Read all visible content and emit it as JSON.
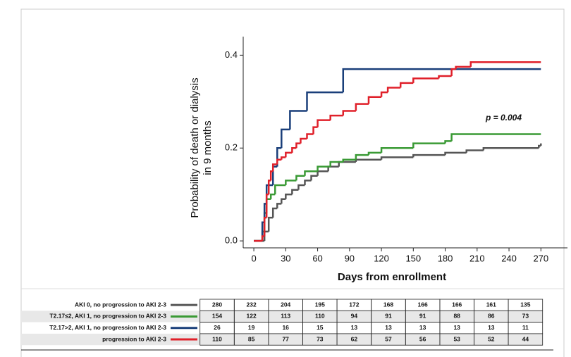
{
  "chart_data": {
    "type": "line",
    "step": true,
    "ylabel": [
      "Probability of death or dialysis",
      "in 9 months"
    ],
    "xlabel": "Days from enrollment",
    "annotation": "p = 0.004",
    "xlim": [
      -10,
      295
    ],
    "ylim": [
      -0.015,
      0.44
    ],
    "xticks": [
      0,
      30,
      60,
      90,
      120,
      150,
      180,
      210,
      240,
      270
    ],
    "yticks": [
      {
        "value": 0,
        "label": "0.0"
      },
      0.2,
      0.4
    ],
    "series": [
      {
        "name": "AKI 0, no progression to AKI 2-3",
        "color": "#555555",
        "x": [
          0,
          10,
          14,
          18,
          22,
          26,
          30,
          36,
          42,
          48,
          54,
          60,
          70,
          80,
          96,
          120,
          150,
          180,
          200,
          216,
          268,
          270
        ],
        "values": [
          0,
          0.02,
          0.05,
          0.07,
          0.08,
          0.09,
          0.1,
          0.11,
          0.12,
          0.13,
          0.14,
          0.15,
          0.16,
          0.17,
          0.175,
          0.18,
          0.185,
          0.19,
          0.195,
          0.2,
          0.205,
          0.21
        ],
        "at_risk": [
          280,
          232,
          204,
          195,
          172,
          168,
          166,
          166,
          161,
          135
        ]
      },
      {
        "name": "T2.17≤2, AKI 1, no progression to AKI 2-3",
        "color": "#3a9a35",
        "x": [
          0,
          8,
          10,
          12,
          16,
          20,
          30,
          40,
          48,
          60,
          72,
          84,
          96,
          108,
          120,
          150,
          180,
          186,
          270
        ],
        "values": [
          0,
          0.02,
          0.06,
          0.09,
          0.1,
          0.12,
          0.13,
          0.14,
          0.15,
          0.16,
          0.17,
          0.175,
          0.185,
          0.19,
          0.2,
          0.21,
          0.215,
          0.23,
          0.23
        ],
        "at_risk": [
          154,
          122,
          113,
          110,
          94,
          91,
          91,
          88,
          86,
          73
        ]
      },
      {
        "name": "T2.17>2, AKI 1, no progression to AKI 2-3",
        "color": "#1a3f7a",
        "x": [
          0,
          8,
          10,
          12,
          18,
          22,
          26,
          34,
          50,
          84,
          270
        ],
        "values": [
          0,
          0.04,
          0.08,
          0.12,
          0.16,
          0.2,
          0.24,
          0.28,
          0.32,
          0.37,
          0.37
        ],
        "at_risk": [
          26,
          19,
          16,
          15,
          13,
          13,
          13,
          13,
          13,
          11
        ]
      },
      {
        "name": "progression to AKI 2-3",
        "color": "#e0202a",
        "x": [
          0,
          8,
          10,
          12,
          14,
          16,
          18,
          22,
          26,
          30,
          36,
          40,
          44,
          50,
          56,
          60,
          72,
          84,
          96,
          108,
          120,
          126,
          138,
          150,
          174,
          186,
          190,
          204,
          270
        ],
        "values": [
          0,
          0.01,
          0.05,
          0.1,
          0.13,
          0.15,
          0.165,
          0.175,
          0.18,
          0.19,
          0.2,
          0.21,
          0.22,
          0.23,
          0.245,
          0.26,
          0.27,
          0.28,
          0.295,
          0.31,
          0.32,
          0.33,
          0.34,
          0.35,
          0.355,
          0.37,
          0.375,
          0.385,
          0.385
        ],
        "at_risk": [
          110,
          85,
          77,
          73,
          62,
          57,
          56,
          53,
          52,
          44
        ]
      }
    ]
  }
}
